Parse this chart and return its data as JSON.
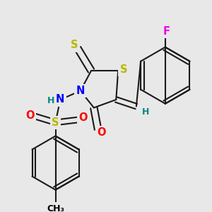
{
  "bg_color": "#e8e8e8",
  "atom_colors": {
    "S": "#b8b800",
    "N": "#0000ff",
    "O": "#ff0000",
    "F": "#ee00ee",
    "C": "#000000",
    "H": "#008888"
  },
  "bond_color": "#1a1a1a",
  "bond_width": 1.5,
  "font_size_atom": 10.5,
  "font_size_small": 9.0
}
